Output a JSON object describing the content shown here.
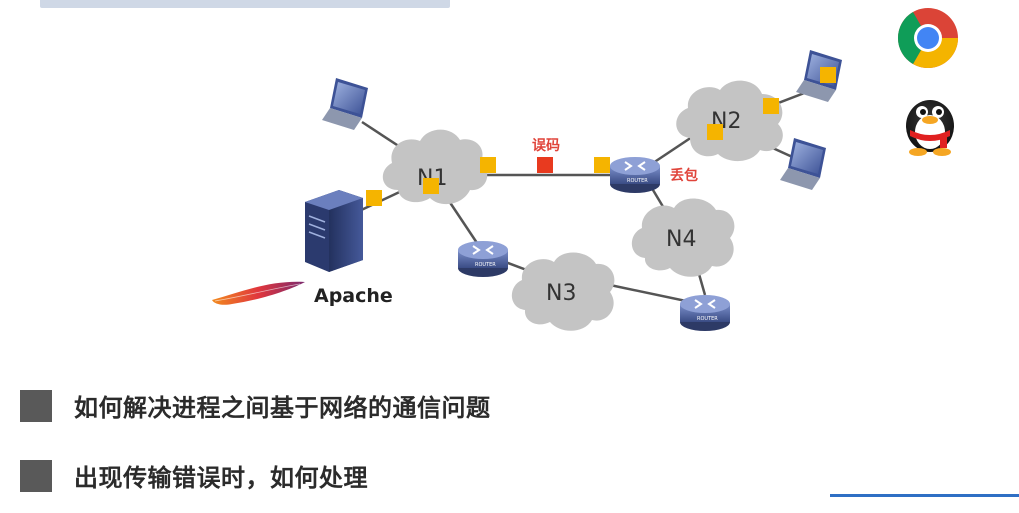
{
  "diagram": {
    "clouds": [
      {
        "id": "n1",
        "label": "N1"
      },
      {
        "id": "n2",
        "label": "N2"
      },
      {
        "id": "n3",
        "label": "N3"
      },
      {
        "id": "n4",
        "label": "N4"
      }
    ],
    "error_label": "误码",
    "drop_label": "丢包",
    "server_label": "Apache",
    "router_caption": "ROUTER",
    "colors": {
      "cloud": "#c4c4c4",
      "packet": "#f5b400",
      "packet_error": "#e83a1f",
      "router": "#4a5f9e",
      "link": "#555555"
    }
  },
  "apps": {
    "chrome_icon": "chrome-browser-icon",
    "qq_icon": "qq-penguin-icon"
  },
  "bullets": [
    {
      "text": "如何解决进程之间基于网络的通信问题"
    },
    {
      "text": "出现传输错误时，如何处理"
    }
  ]
}
